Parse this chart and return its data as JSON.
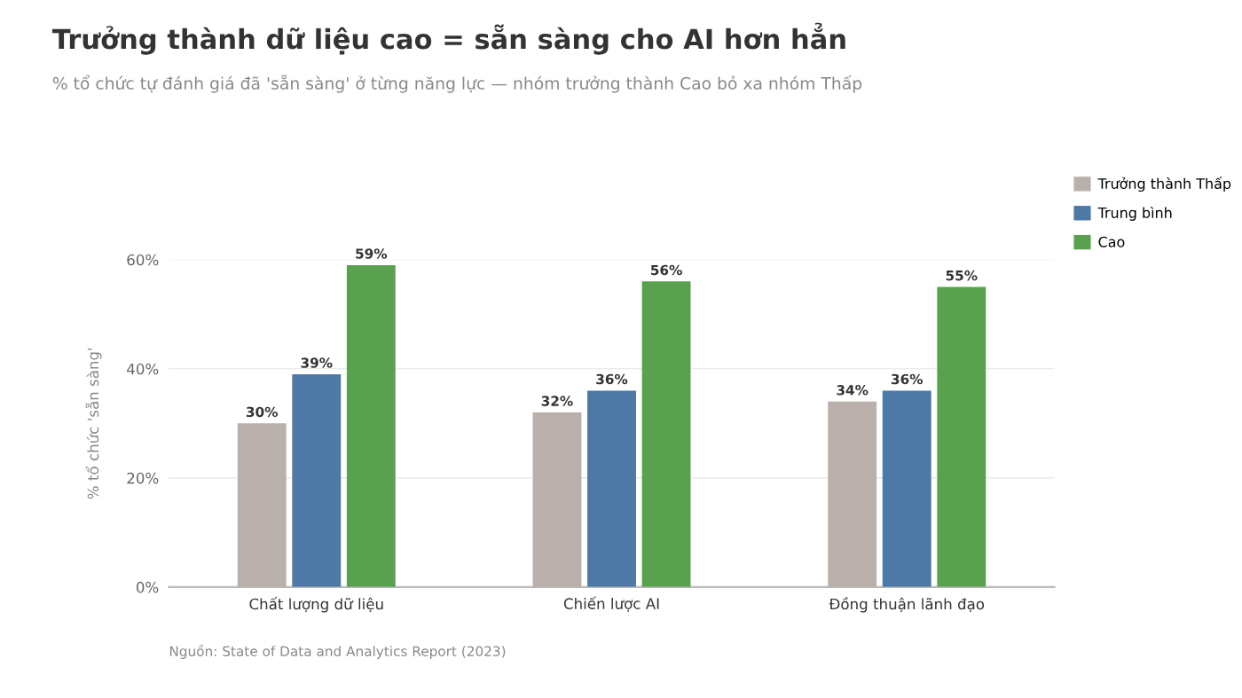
{
  "chart_data": {
    "type": "bar",
    "title": "Trưởng thành dữ liệu cao = sẵn sàng cho AI hơn hẳn",
    "subtitle": "% tổ chức tự đánh giá đã 'sẵn sàng' ở từng năng lực — nhóm trưởng thành Cao bỏ xa nhóm Thấp",
    "ylabel": "% tổ chức 'sẵn sàng'",
    "categories": [
      "Chất lượng dữ liệu",
      "Chiến lược AI",
      "Đồng thuận lãnh đạo"
    ],
    "series": [
      {
        "name": "Trưởng thành Thấp",
        "color": "#bab0ab",
        "values": [
          30,
          32,
          34
        ],
        "value_labels": [
          "30%",
          "32%",
          "34%"
        ]
      },
      {
        "name": "Trung bình",
        "color": "#4e79a7",
        "values": [
          39,
          36,
          36
        ],
        "value_labels": [
          "39%",
          "36%",
          "36%"
        ]
      },
      {
        "name": "Cao",
        "color": "#59a14f",
        "values": [
          59,
          56,
          55
        ],
        "value_labels": [
          "59%",
          "56%",
          "55%"
        ]
      }
    ],
    "ylim": [
      0,
      60
    ],
    "yticks": [
      {
        "value": 0,
        "label": "0%"
      },
      {
        "value": 20,
        "label": "20%"
      },
      {
        "value": 40,
        "label": "40%"
      },
      {
        "value": 60,
        "label": "60%"
      }
    ],
    "grid": "y",
    "legend": "top right",
    "annotations": [
      "Nguồn: State of Data and Analytics Report (2023)"
    ]
  }
}
